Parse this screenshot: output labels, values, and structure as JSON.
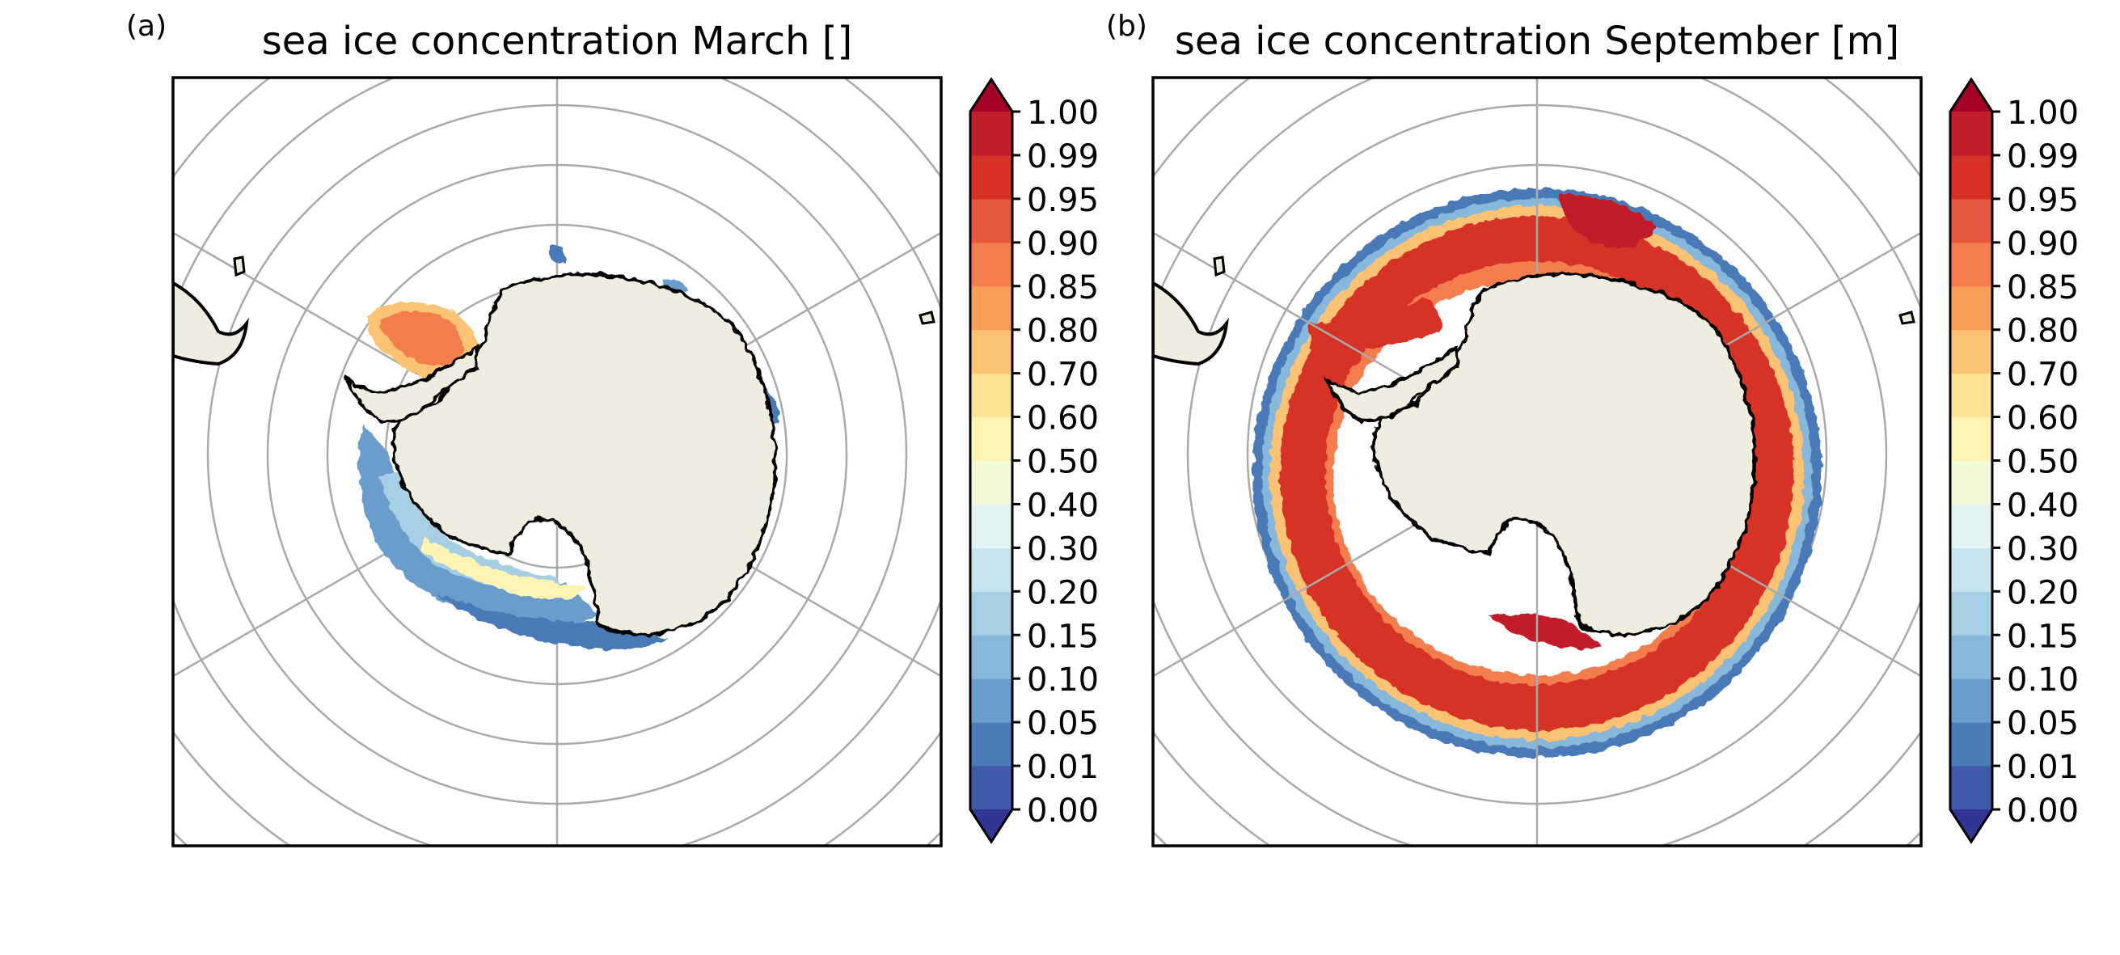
{
  "panels": [
    {
      "id": "a",
      "letter": "(a)",
      "title": "sea ice concentration March []",
      "month": "March",
      "ice_edge_description": "narrow ring: Weddell Sea pocket, Ross Sea, Bellingshausen/Amundsen sector"
    },
    {
      "id": "b",
      "letter": "(b)",
      "title": "sea ice concentration September [m]",
      "month": "September",
      "ice_edge_description": "broad ring of high concentration encircling the continent"
    }
  ],
  "colorbar": {
    "levels": [
      "0.00",
      "0.01",
      "0.05",
      "0.10",
      "0.15",
      "0.20",
      "0.30",
      "0.40",
      "0.50",
      "0.60",
      "0.70",
      "0.80",
      "0.85",
      "0.90",
      "0.95",
      "0.99",
      "1.00"
    ],
    "colors": [
      "#3f5aa8",
      "#4a7ab7",
      "#6a9dcb",
      "#87b7da",
      "#a6cfe5",
      "#c7e4ef",
      "#e2f2f1",
      "#f5fad6",
      "#fff4b3",
      "#fee395",
      "#fdc374",
      "#f99e59",
      "#f47d4e",
      "#e55a3e",
      "#d73027",
      "#c01f2b"
    ],
    "under_color": "#313695",
    "over_color": "#a50026",
    "extend": "both"
  },
  "map": {
    "projection": "south-polar-stereographic",
    "land_color": "#efeddf",
    "gridline_color": "#aaaaaa",
    "coastline_color": "#000000"
  }
}
